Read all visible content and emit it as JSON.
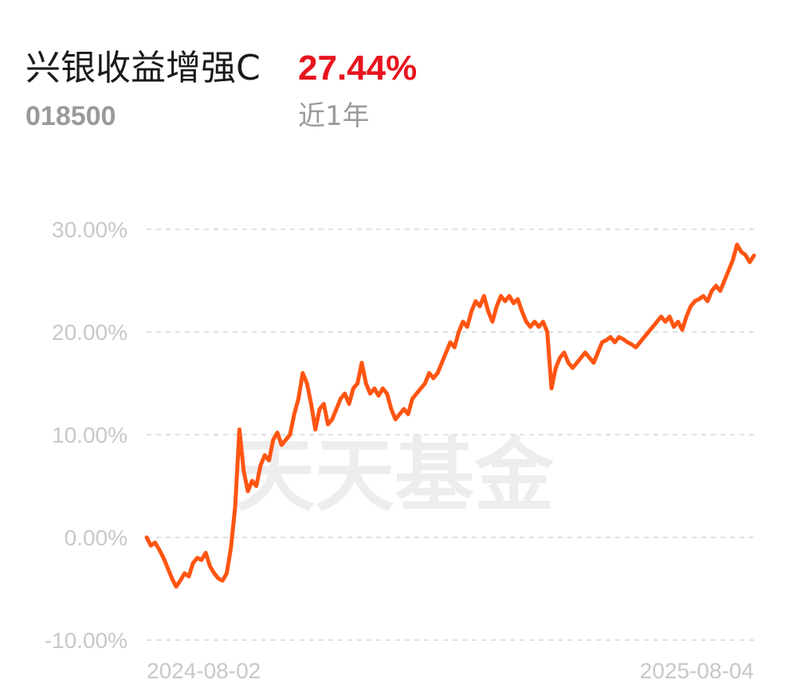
{
  "header": {
    "fund_name": "兴银收益增强C",
    "return_value": "27.44%",
    "fund_code": "018500",
    "period_label": "近1年"
  },
  "watermark": "天天基金",
  "colors": {
    "line": "#ff5512",
    "return": "#e8141e",
    "grid": "#e0e0e0",
    "tick": "#c8c8c8"
  },
  "chart_data": {
    "type": "line",
    "title": "",
    "xlabel": "",
    "ylabel": "",
    "ylim": [
      -10,
      30
    ],
    "y_ticks": [
      {
        "value": 30,
        "label": "30.00%"
      },
      {
        "value": 20,
        "label": "20.00%"
      },
      {
        "value": 10,
        "label": "10.00%"
      },
      {
        "value": 0,
        "label": "0.00%"
      },
      {
        "value": -10,
        "label": "-10.00%"
      }
    ],
    "x_ticks": [
      {
        "value": 0,
        "label": "2024-08-02"
      },
      {
        "value": 1,
        "label": "2025-08-04"
      }
    ],
    "grid": true,
    "series": [
      {
        "values": [
          0.0,
          -0.8,
          -0.5,
          -1.2,
          -2.0,
          -3.0,
          -4.0,
          -4.8,
          -4.2,
          -3.5,
          -3.8,
          -2.5,
          -2.0,
          -2.2,
          -1.5,
          -2.8,
          -3.5,
          -4.0,
          -4.2,
          -3.5,
          -1.0,
          3.0,
          10.5,
          6.5,
          4.5,
          5.5,
          5.0,
          7.0,
          8.0,
          7.5,
          9.5,
          10.2,
          9.0,
          9.5,
          10.0,
          12.0,
          13.5,
          16.0,
          15.0,
          13.0,
          10.5,
          12.5,
          13.0,
          11.0,
          11.5,
          12.5,
          13.5,
          14.0,
          13.0,
          14.5,
          15.0,
          17.0,
          15.0,
          14.0,
          14.5,
          13.8,
          14.5,
          14.0,
          12.5,
          11.5,
          12.0,
          12.5,
          12.0,
          13.5,
          14.0,
          14.5,
          15.0,
          16.0,
          15.5,
          16.0,
          17.0,
          18.0,
          19.0,
          18.5,
          20.0,
          21.0,
          20.5,
          22.0,
          23.0,
          22.5,
          23.5,
          22.0,
          21.0,
          22.5,
          23.5,
          23.0,
          23.5,
          22.8,
          23.2,
          22.0,
          21.0,
          20.5,
          21.0,
          20.5,
          21.0,
          20.0,
          14.5,
          16.5,
          17.5,
          18.0,
          17.0,
          16.5,
          17.0,
          17.5,
          18.0,
          17.5,
          17.0,
          18.0,
          19.0,
          19.2,
          19.5,
          19.0,
          19.5,
          19.3,
          19.0,
          18.8,
          18.5,
          19.0,
          19.5,
          20.0,
          20.5,
          21.0,
          21.5,
          21.0,
          21.5,
          20.5,
          21.0,
          20.2,
          21.5,
          22.5,
          23.0,
          23.2,
          23.5,
          23.0,
          24.0,
          24.5,
          24.0,
          25.0,
          26.0,
          27.0,
          28.5,
          27.8,
          27.5,
          26.8,
          27.44
        ]
      }
    ]
  }
}
